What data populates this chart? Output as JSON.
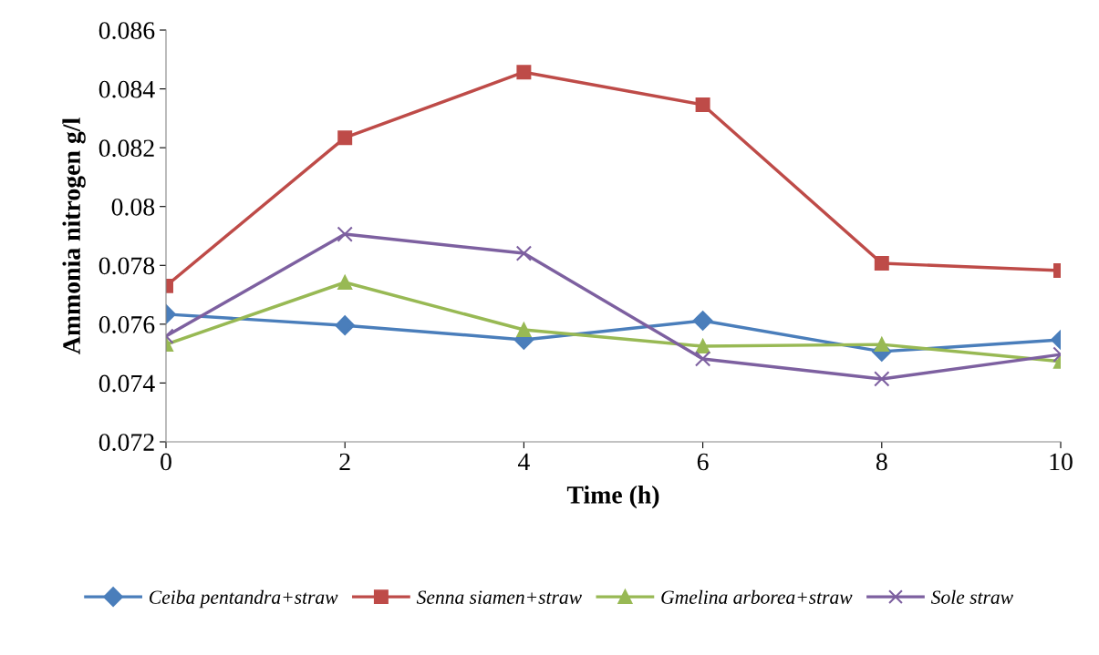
{
  "chart_data": {
    "type": "line",
    "xlabel": "Time (h)",
    "ylabel": "Ammonia nitrogen g/l",
    "x": [
      0,
      2,
      4,
      6,
      8,
      10
    ],
    "xlim": [
      0,
      10
    ],
    "xticks": [
      0,
      2,
      4,
      6,
      8,
      10
    ],
    "ylim": [
      0.072,
      0.086
    ],
    "yticks": [
      0.072,
      0.074,
      0.076,
      0.078,
      0.08,
      0.082,
      0.084,
      0.086
    ],
    "grid": false,
    "legend": "bottom",
    "line_style": "solid",
    "series": [
      {
        "name": "Ceiba pentandra+straw",
        "color": "#4a7ebb",
        "marker": "diamond",
        "values": [
          0.07634,
          0.07596,
          0.07547,
          0.07612,
          0.07507,
          0.07547
        ]
      },
      {
        "name": "Senna siamen+straw",
        "color": "#be4b48",
        "marker": "square",
        "values": [
          0.0773,
          0.08234,
          0.08457,
          0.08346,
          0.07807,
          0.07782
        ]
      },
      {
        "name": "Gmelina arborea+straw",
        "color": "#98b954",
        "marker": "triangle",
        "values": [
          0.07531,
          0.07742,
          0.07581,
          0.07525,
          0.07531,
          0.07473
        ]
      },
      {
        "name": "Sole straw",
        "color": "#7d60a0",
        "marker": "cross",
        "values": [
          0.07559,
          0.07906,
          0.07841,
          0.07482,
          0.07414,
          0.07497
        ]
      }
    ]
  }
}
